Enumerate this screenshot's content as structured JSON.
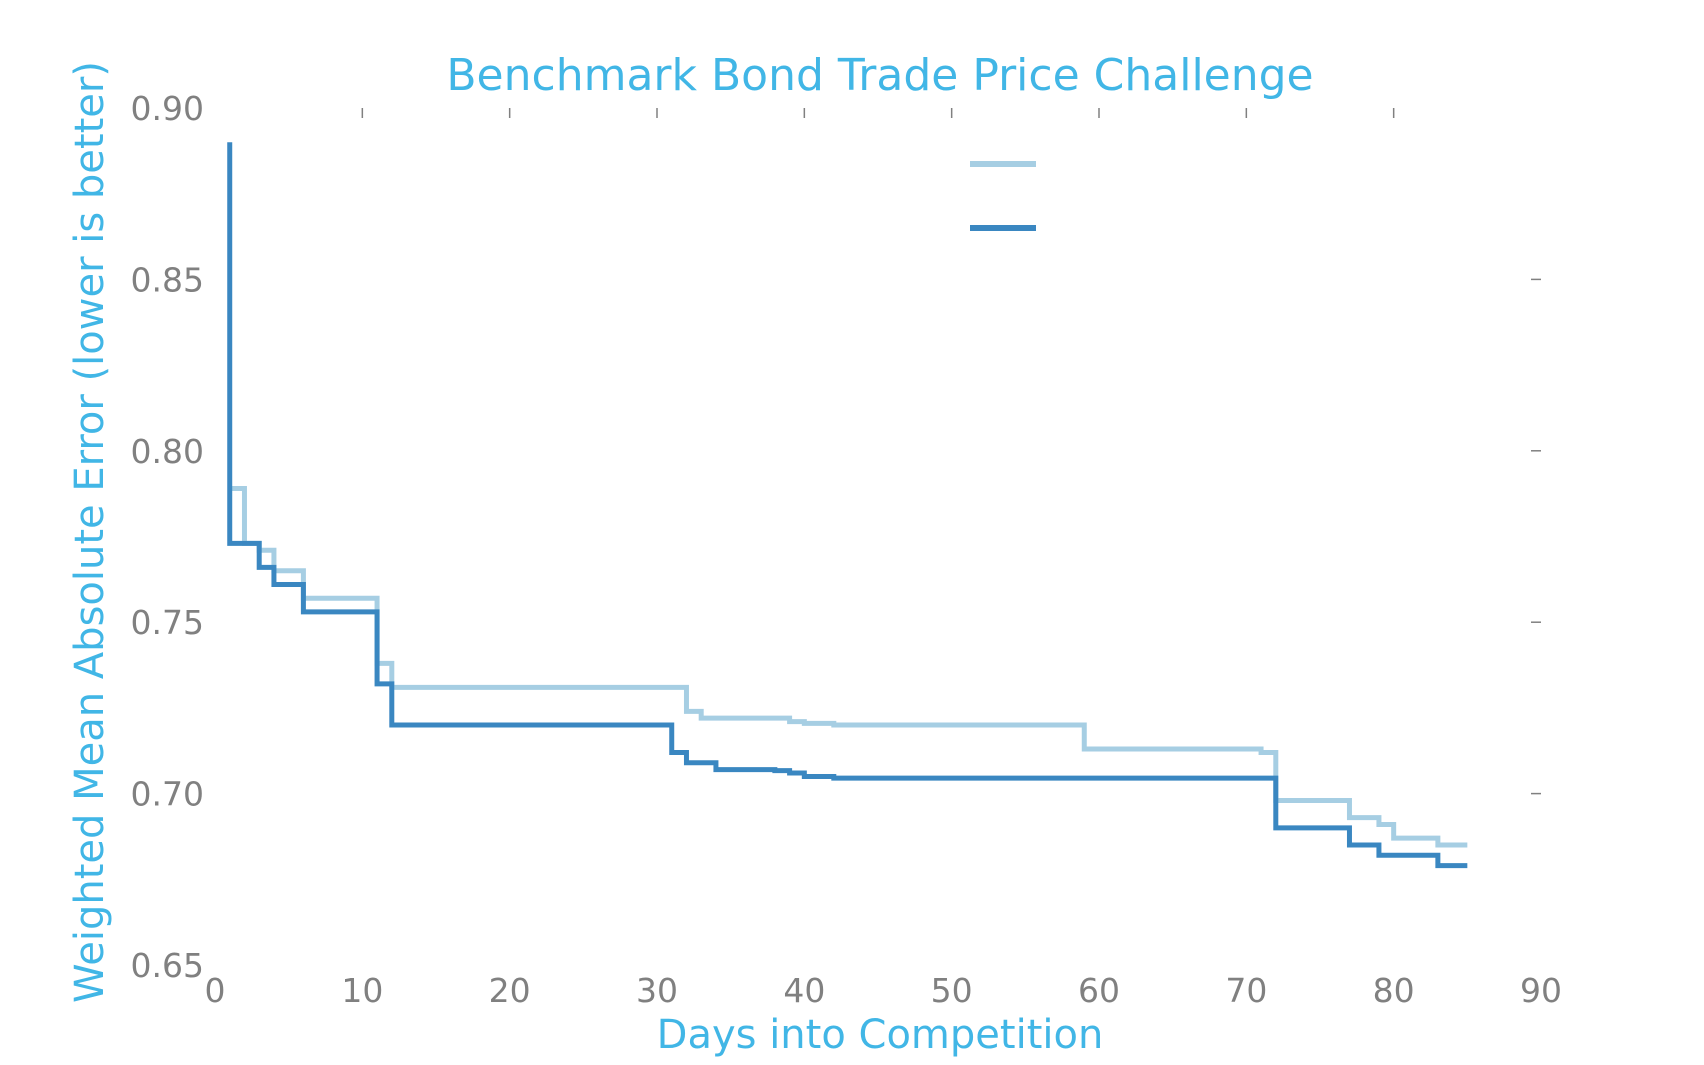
{
  "chart_data": {
    "type": "line",
    "title": "Benchmark Bond Trade Price Challenge",
    "xlabel": "Days into Competition",
    "ylabel": "Weighted Mean Absolute Error (lower is better)",
    "xlim": [
      0,
      90
    ],
    "ylim": [
      0.65,
      0.9
    ],
    "xticks": [
      "0",
      "10",
      "20",
      "30",
      "40",
      "50",
      "60",
      "70",
      "80",
      "90"
    ],
    "yticks": [
      "0.65",
      "0.70",
      "0.75",
      "0.80",
      "0.85",
      "0.90"
    ],
    "grid": false,
    "legend": "top-center, entries without text",
    "step": true,
    "series": [
      {
        "color": "#a6cee3",
        "x": [
          1,
          2,
          3,
          4,
          5,
          6,
          11,
          12,
          32,
          33,
          39,
          40,
          42,
          59,
          71,
          72,
          77,
          79,
          80,
          83,
          85
        ],
        "y": [
          0.789,
          0.773,
          0.771,
          0.765,
          0.765,
          0.757,
          0.738,
          0.731,
          0.724,
          0.722,
          0.721,
          0.7205,
          0.72,
          0.713,
          0.712,
          0.698,
          0.693,
          0.691,
          0.687,
          0.685,
          0.685
        ]
      },
      {
        "color": "#3a87c1",
        "x": [
          1,
          3,
          4,
          6,
          11,
          12,
          31,
          32,
          34,
          38,
          39,
          40,
          42,
          72,
          77,
          79,
          83,
          85
        ],
        "y": [
          0.89,
          0.766,
          0.761,
          0.753,
          0.732,
          0.72,
          0.712,
          0.709,
          0.707,
          0.7067,
          0.706,
          0.705,
          0.7045,
          0.69,
          0.685,
          0.682,
          0.679,
          0.679
        ]
      }
    ],
    "y_start": [
      null,
      0.773
    ]
  }
}
